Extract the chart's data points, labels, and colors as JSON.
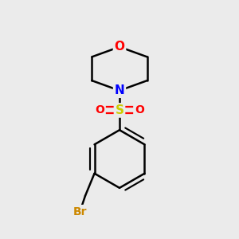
{
  "background_color": "#ebebeb",
  "atom_colors": {
    "O": "#ff0000",
    "N": "#0000ff",
    "S": "#cccc00",
    "Br": "#cc8800",
    "C": "#000000"
  },
  "bond_color": "#000000",
  "bond_width": 1.8,
  "figsize": [
    3.0,
    3.0
  ],
  "dpi": 100
}
